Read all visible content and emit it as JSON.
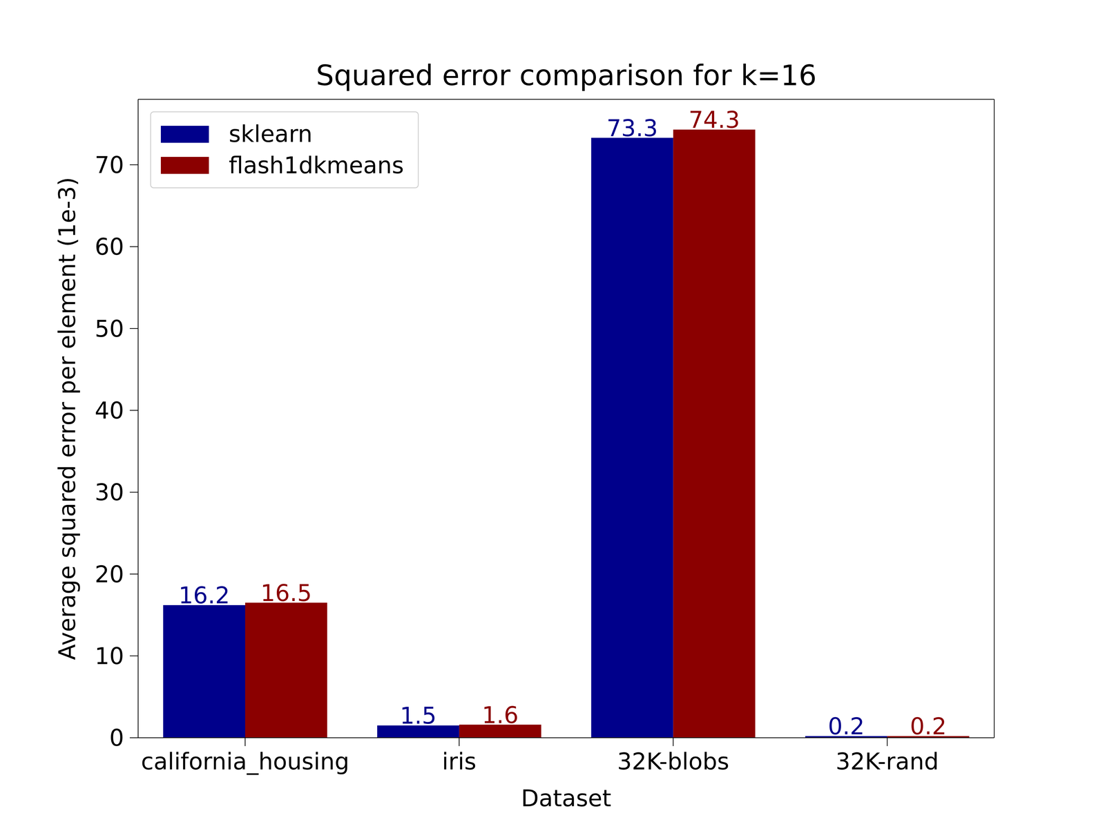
{
  "chart_data": {
    "type": "bar",
    "title": "Squared error comparison for k=16",
    "x_label": "Dataset",
    "y_label": "Average squared error per element (1e-3)",
    "categories": [
      "california_housing",
      "iris",
      "32K-blobs",
      "32K-rand"
    ],
    "series": [
      {
        "name": "sklearn",
        "color": "#00008b",
        "values": [
          16.2,
          1.5,
          73.3,
          0.2
        ]
      },
      {
        "name": "flash1dkmeans",
        "color": "#8b0000",
        "values": [
          16.5,
          1.6,
          74.3,
          0.2
        ]
      }
    ],
    "ylim": [
      0,
      78
    ],
    "yticks": [
      0,
      10,
      20,
      30,
      40,
      50,
      60,
      70
    ],
    "grid": false,
    "legend": "upper left",
    "data_labels": true
  }
}
